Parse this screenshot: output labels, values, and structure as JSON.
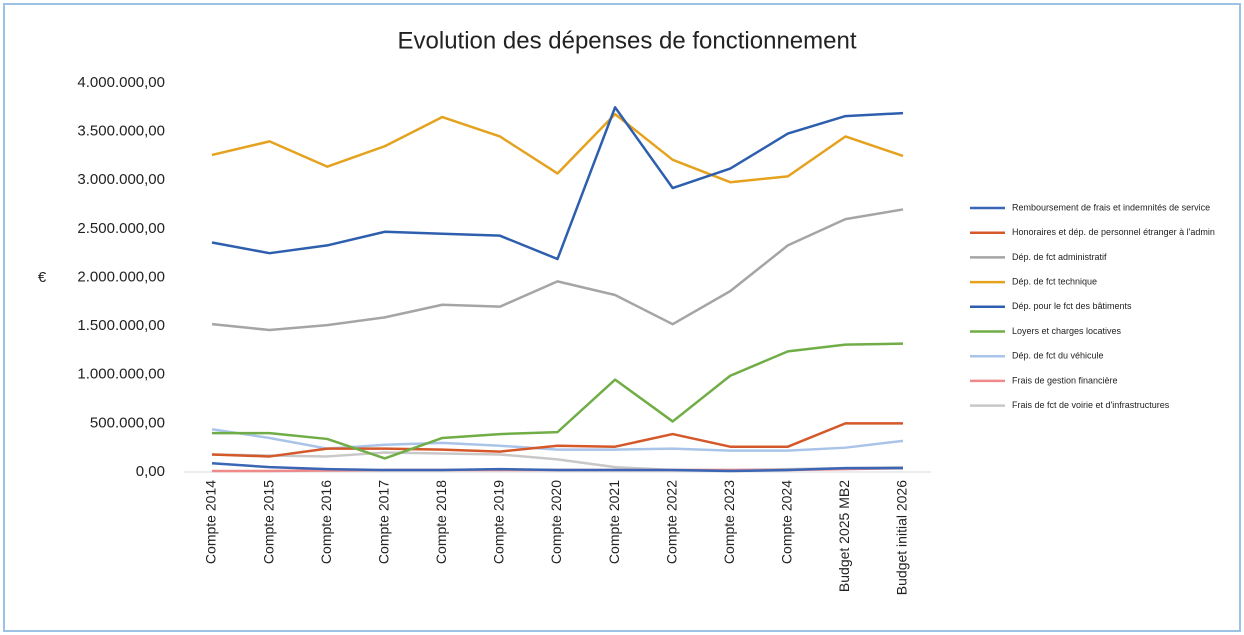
{
  "chart_data": {
    "type": "line",
    "title": "Evolution des dépenses de fonctionnement",
    "y_label": "€",
    "categories": [
      "Compte 2014",
      "Compte 2015",
      "Compte 2016",
      "Compte 2017",
      "Compte 2018",
      "Compte 2019",
      "Compte 2020",
      "Compte 2021",
      "Compte 2022",
      "Compte 2023",
      "Compte 2024",
      "Budget 2025 MB2",
      "Budget initial 2026"
    ],
    "ylim": [
      0,
      4000000
    ],
    "yticks": [
      {
        "value": 0,
        "label": "0,00"
      },
      {
        "value": 500000,
        "label": "500.000,00"
      },
      {
        "value": 1000000,
        "label": "1.000.000,00"
      },
      {
        "value": 1500000,
        "label": "1.500.000,00"
      },
      {
        "value": 2000000,
        "label": "2.000.000,00"
      },
      {
        "value": 2500000,
        "label": "2.500.000,00"
      },
      {
        "value": 3000000,
        "label": "3.000.000,00"
      },
      {
        "value": 3500000,
        "label": "3.500.000,00"
      },
      {
        "value": 4000000,
        "label": "4.000.000,00"
      }
    ],
    "legend": "right",
    "series": [
      {
        "name": "Remboursement de frais et indemnités de service",
        "color": "#3a66b5",
        "values": [
          90000,
          50000,
          30000,
          20000,
          20000,
          30000,
          20000,
          20000,
          20000,
          10000,
          20000,
          40000,
          40000
        ]
      },
      {
        "name": "Honoraires et dép. de personnel étranger à l'admin",
        "color": "#d4582a",
        "values": [
          180000,
          160000,
          240000,
          240000,
          230000,
          210000,
          270000,
          260000,
          390000,
          260000,
          260000,
          500000,
          500000
        ]
      },
      {
        "name": "Dép. de fct administratif",
        "color": "#a5a5a5",
        "values": [
          1520000,
          1460000,
          1510000,
          1590000,
          1720000,
          1700000,
          1960000,
          1820000,
          1520000,
          1860000,
          2330000,
          2600000,
          2700000
        ]
      },
      {
        "name": "Dép. de fct technique",
        "color": "#e5a21f",
        "values": [
          3260000,
          3400000,
          3140000,
          3350000,
          3650000,
          3450000,
          3070000,
          3680000,
          3210000,
          2980000,
          3040000,
          3450000,
          3250000
        ]
      },
      {
        "name": "Dép. pour le fct des bâtiments",
        "color": "#2e5fae",
        "values": [
          2360000,
          2250000,
          2330000,
          2470000,
          2450000,
          2430000,
          2190000,
          3750000,
          2920000,
          3120000,
          3480000,
          3660000,
          3690000
        ]
      },
      {
        "name": "Loyers et charges locatives",
        "color": "#70ad47",
        "values": [
          400000,
          400000,
          340000,
          140000,
          350000,
          390000,
          410000,
          950000,
          520000,
          990000,
          1240000,
          1310000,
          1320000
        ]
      },
      {
        "name": "Dép. de fct du véhicule",
        "color": "#a9c4e8",
        "values": [
          440000,
          350000,
          240000,
          280000,
          300000,
          270000,
          230000,
          230000,
          240000,
          220000,
          220000,
          250000,
          320000
        ]
      },
      {
        "name": "Frais de gestion financière",
        "color": "#f08a8a",
        "values": [
          10000,
          10000,
          15000,
          20000,
          20000,
          20000,
          20000,
          20000,
          20000,
          20000,
          20000,
          30000,
          40000
        ]
      },
      {
        "name": "Frais de fct de voirie et d'infrastructures",
        "color": "#c8c8c8",
        "values": [
          180000,
          170000,
          160000,
          200000,
          190000,
          180000,
          130000,
          50000,
          20000,
          20000,
          30000,
          40000,
          50000
        ]
      }
    ]
  }
}
